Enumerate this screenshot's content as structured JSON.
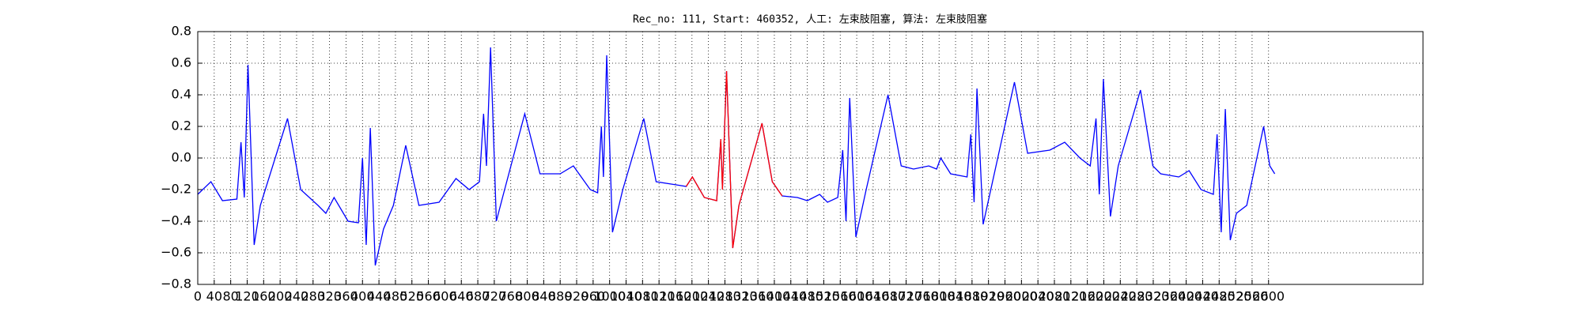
{
  "chart_data": {
    "type": "line",
    "title": "Rec_no: 111, Start: 460352, 人工: 左束肢阻塞, 算法: 左束肢阻塞",
    "x": [
      0,
      32,
      60,
      95,
      105,
      113,
      122,
      137,
      152,
      218,
      250,
      292,
      311,
      331,
      365,
      390,
      400,
      409,
      419,
      431,
      451,
      475,
      505,
      537,
      586,
      627,
      659,
      684,
      694,
      701,
      711,
      725,
      740,
      794,
      831,
      880,
      912,
      953,
      971,
      980,
      985,
      993,
      1007,
      1032,
      1083,
      1113,
      1162,
      1186,
      1201,
      1230,
      1260,
      1270,
      1274,
      1284,
      1299,
      1314,
      1370,
      1395,
      1419,
      1456,
      1480,
      1510,
      1529,
      1554,
      1566,
      1574,
      1583,
      1598,
      1623,
      1676,
      1708,
      1738,
      1775,
      1794,
      1804,
      1828,
      1868,
      1877,
      1885,
      1892,
      1907,
      1934,
      1983,
      2015,
      2069,
      2105,
      2142,
      2167,
      2181,
      2189,
      2199,
      2216,
      2235,
      2289,
      2319,
      2338,
      2382,
      2407,
      2436,
      2466,
      2475,
      2485,
      2495,
      2507,
      2522,
      2547,
      2588,
      2603,
      2615
    ],
    "series": [
      {
        "color": "#0000ff",
        "values": [
          -0.23,
          -0.15,
          -0.27,
          -0.26,
          0.1,
          -0.25,
          0.59,
          -0.55,
          -0.3,
          0.25,
          -0.2,
          -0.3,
          -0.35,
          -0.25,
          -0.4,
          -0.41,
          0,
          -0.55,
          0.19,
          -0.68,
          -0.45,
          -0.3,
          0.08,
          -0.3,
          -0.28,
          -0.13,
          -0.2,
          -0.15,
          0.28,
          -0.05,
          0.7,
          -0.4,
          -0.25,
          0.28,
          -0.1,
          -0.1,
          -0.05,
          -0.2,
          -0.22,
          0.2,
          -0.12,
          0.65,
          -0.47,
          -0.2,
          0.25,
          -0.15,
          -0.17,
          -0.18,
          -0.12,
          -0.25,
          -0.27,
          0.12,
          -0.2,
          0.55,
          -0.57,
          -0.3,
          0.22,
          -0.15,
          -0.24,
          -0.25,
          -0.27,
          -0.23,
          -0.28,
          -0.25,
          0.05,
          -0.4,
          0.38,
          -0.5,
          -0.2,
          0.4,
          -0.05,
          -0.07,
          -0.05,
          -0.07,
          0,
          -0.1,
          -0.12,
          0.15,
          -0.28,
          0.44,
          -0.42,
          -0.1,
          0.48,
          0.03,
          0.05,
          0.1,
          0,
          -0.05,
          0.25,
          -0.23,
          0.5,
          -0.37,
          -0.05,
          0.43,
          -0.05,
          -0.1,
          -0.12,
          -0.08,
          -0.2,
          -0.23,
          0.15,
          -0.47,
          0.31,
          -0.52,
          -0.35,
          -0.3,
          0.2,
          -0.05,
          -0.1
        ]
      },
      {
        "color": "#ff0000",
        "values": [
          null,
          null,
          null,
          null,
          null,
          null,
          null,
          null,
          null,
          null,
          null,
          null,
          null,
          null,
          null,
          null,
          null,
          null,
          null,
          null,
          null,
          null,
          null,
          null,
          null,
          null,
          null,
          null,
          null,
          null,
          null,
          null,
          null,
          null,
          null,
          null,
          null,
          null,
          null,
          null,
          null,
          null,
          null,
          null,
          null,
          null,
          null,
          -0.18,
          -0.12,
          -0.25,
          -0.27,
          0.12,
          -0.2,
          0.55,
          -0.57,
          -0.3,
          0.22,
          -0.15,
          -0.24,
          null,
          null,
          null,
          null,
          null,
          null,
          null,
          null,
          null,
          null,
          null,
          null,
          null,
          null,
          null,
          null,
          null,
          null,
          null,
          null,
          null,
          null,
          null,
          null,
          null,
          null,
          null,
          null,
          null,
          null,
          null,
          null,
          null,
          null,
          null,
          null,
          null,
          null,
          null,
          null,
          null,
          null,
          null,
          null,
          null,
          null,
          null,
          null,
          null,
          null
        ]
      }
    ],
    "xlim": [
      0,
      2975
    ],
    "xticks": [
      0,
      40,
      80,
      120,
      160,
      200,
      240,
      280,
      320,
      360,
      400,
      440,
      480,
      520,
      560,
      600,
      640,
      680,
      720,
      760,
      800,
      840,
      880,
      920,
      960,
      1000,
      1040,
      1080,
      1120,
      1160,
      1200,
      1240,
      1280,
      1320,
      1360,
      1400,
      1440,
      1480,
      1520,
      1560,
      1600,
      1640,
      1680,
      1720,
      1760,
      1800,
      1840,
      1880,
      1920,
      1960,
      2000,
      2040,
      2080,
      2120,
      2160,
      2200,
      2240,
      2280,
      2320,
      2360,
      2400,
      2440,
      2480,
      2520,
      2560,
      2600
    ],
    "ylim": [
      -0.8,
      0.8
    ],
    "yticks": [
      {
        "value": -0.8,
        "label": "−0.8"
      },
      {
        "value": -0.6,
        "label": "−0.6"
      },
      {
        "value": -0.4,
        "label": "−0.4"
      },
      {
        "value": -0.2,
        "label": "−0.2"
      },
      {
        "value": 0,
        "label": "0.0"
      },
      0.2,
      0.4,
      0.6,
      0.8
    ],
    "grid": true
  }
}
